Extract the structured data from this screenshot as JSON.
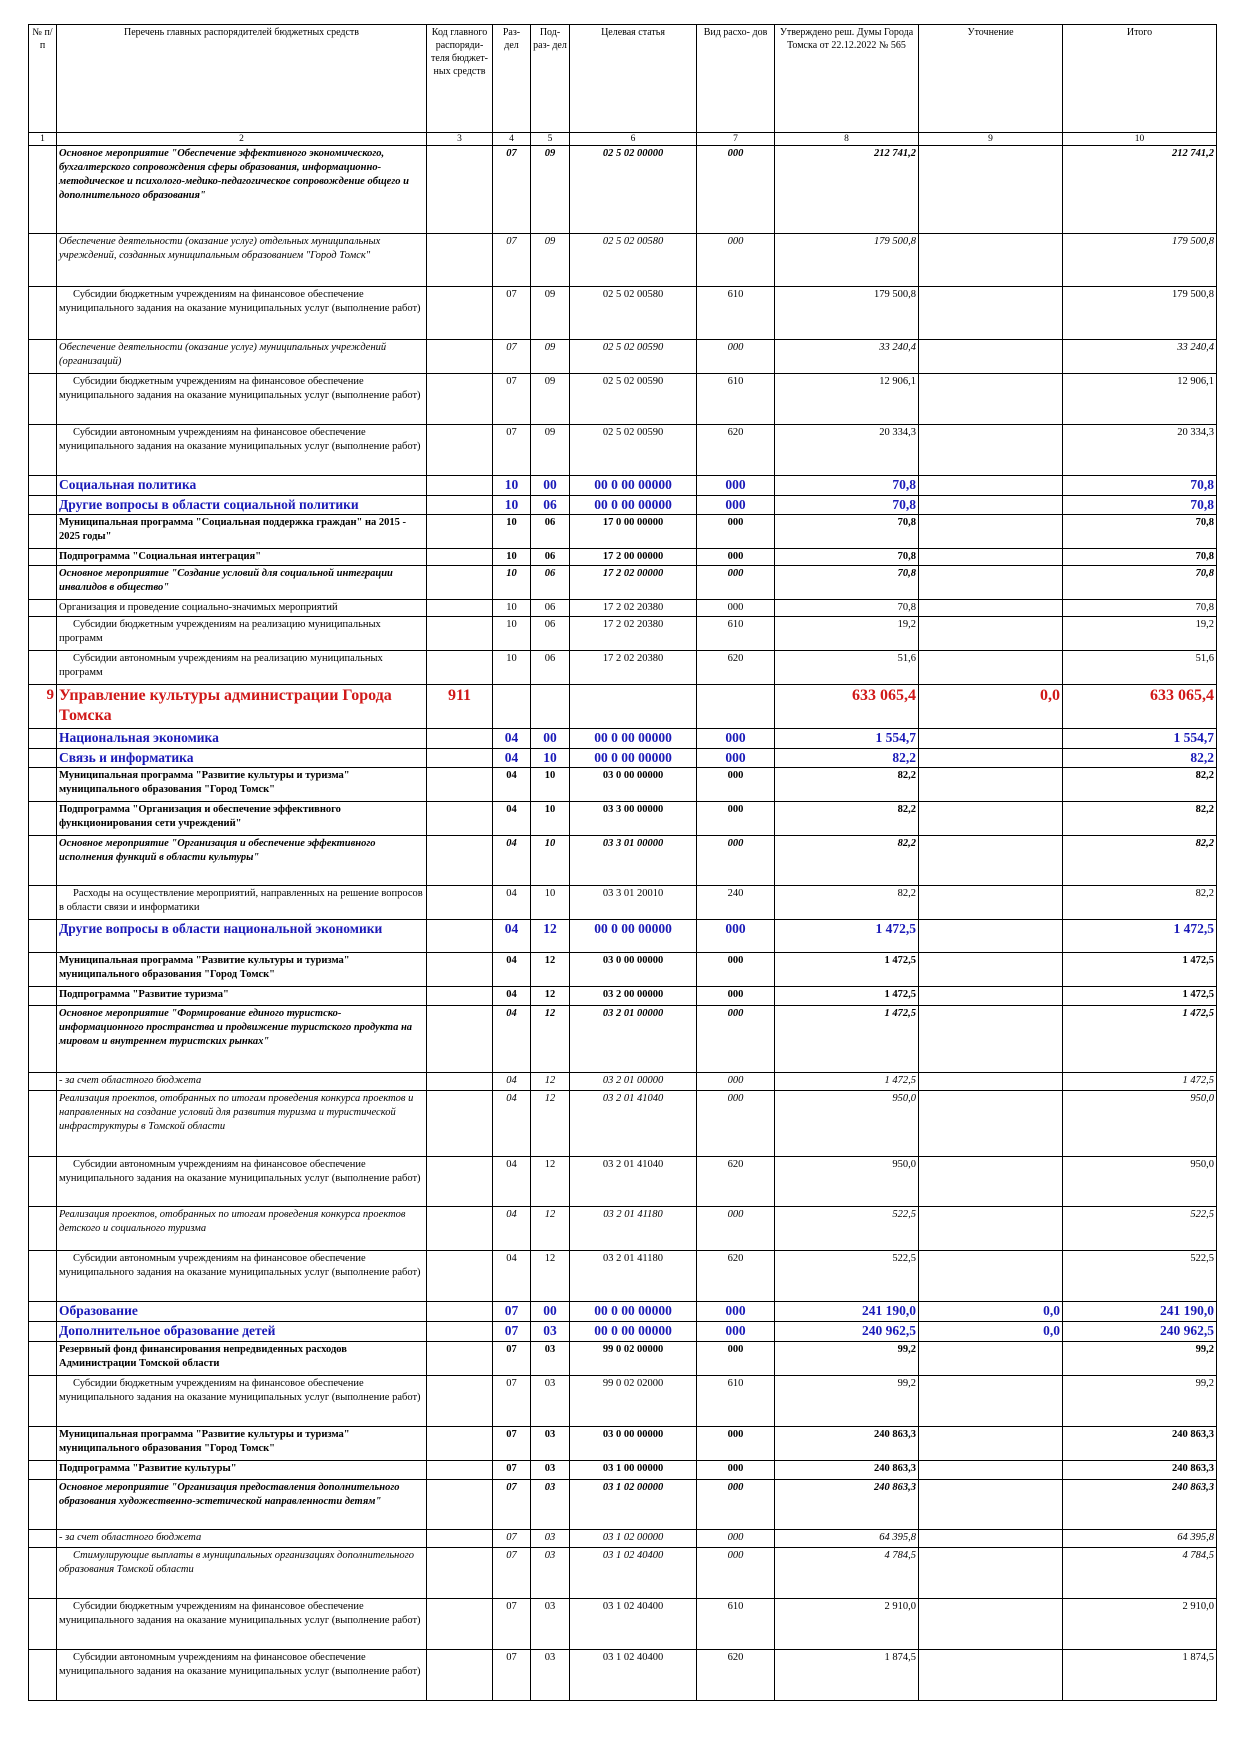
{
  "header": {
    "columns": [
      "№ п/п",
      "Перечень главных распорядителей бюджетных средств",
      "Код главного распоряди- теля бюджет- ных средств",
      "Раз- дел",
      "Под- раз- дел",
      "Целевая статья",
      "Вид расхо- дов",
      "Утверждено реш. Думы Города Томска от 22.12.2022 № 565",
      "Уточнение",
      "Итого"
    ],
    "numbers": [
      "1",
      "2",
      "3",
      "4",
      "5",
      "6",
      "7",
      "8",
      "9",
      "10"
    ]
  },
  "rows": [
    {
      "style": "bi",
      "h": 88,
      "no": "",
      "name": "Основное мероприятие \"Обеспечение эффективного экономического, бухгалтерского сопровождения сферы образования, информационно-методическое и психолого-медико-педагогическое сопровождение общего и дополнительного образования\"",
      "code": "",
      "razdel": "07",
      "podrazdel": "09",
      "csr": "02 5 02 00000",
      "vr": "000",
      "approved": "212 741,2",
      "adjust": "",
      "total": "212 741,2"
    },
    {
      "style": "i",
      "h": 53,
      "no": "",
      "name": "Обеспечение деятельности (оказание услуг) отдельных муниципальных учреждений, созданных муниципальным образованием \"Город Томск\"",
      "code": "",
      "razdel": "07",
      "podrazdel": "09",
      "csr": "02 5 02 00580",
      "vr": "000",
      "approved": "179 500,8",
      "adjust": "",
      "total": "179 500,8"
    },
    {
      "style": "ind",
      "h": 53,
      "no": "",
      "name": "Субсидии бюджетным учреждениям на финансовое обеспечение муниципального задания на оказание муниципальных услуг (выполнение работ)",
      "code": "",
      "razdel": "07",
      "podrazdel": "09",
      "csr": "02 5 02 00580",
      "vr": "610",
      "approved": "179 500,8",
      "adjust": "",
      "total": "179 500,8"
    },
    {
      "style": "i",
      "h": 34,
      "no": "",
      "name": "Обеспечение деятельности (оказание услуг) муниципальных учреждений (организаций)",
      "code": "",
      "razdel": "07",
      "podrazdel": "09",
      "csr": "02 5 02 00590",
      "vr": "000",
      "approved": "33 240,4",
      "adjust": "",
      "total": "33 240,4"
    },
    {
      "style": "ind",
      "h": 51,
      "no": "",
      "name": "Субсидии бюджетным учреждениям на финансовое обеспечение муниципального задания на оказание муниципальных услуг (выполнение работ)",
      "code": "",
      "razdel": "07",
      "podrazdel": "09",
      "csr": "02 5 02 00590",
      "vr": "610",
      "approved": "12 906,1",
      "adjust": "",
      "total": "12 906,1"
    },
    {
      "style": "ind",
      "h": 51,
      "no": "",
      "name": "Субсидии автономным учреждениям на финансовое обеспечение муниципального задания на оказание муниципальных услуг (выполнение работ)",
      "code": "",
      "razdel": "07",
      "podrazdel": "09",
      "csr": "02 5 02 00590",
      "vr": "620",
      "approved": "20 334,3",
      "adjust": "",
      "total": "20 334,3"
    },
    {
      "style": "blue",
      "h": 19,
      "no": "",
      "name": "Социальная политика",
      "code": "",
      "razdel": "10",
      "podrazdel": "00",
      "csr": "00 0 00 00000",
      "vr": "000",
      "approved": "70,8",
      "adjust": "",
      "total": "70,8"
    },
    {
      "style": "blue",
      "h": 19,
      "no": "",
      "name": "Другие вопросы в области социальной политики",
      "code": "",
      "razdel": "10",
      "podrazdel": "06",
      "csr": "00 0 00 00000",
      "vr": "000",
      "approved": "70,8",
      "adjust": "",
      "total": "70,8"
    },
    {
      "style": "b",
      "h": 34,
      "no": "",
      "name": "Муниципальная программа \"Социальная поддержка граждан\" на 2015 - 2025 годы\"",
      "code": "",
      "razdel": "10",
      "podrazdel": "06",
      "csr": "17 0 00 00000",
      "vr": "000",
      "approved": "70,8",
      "adjust": "",
      "total": "70,8"
    },
    {
      "style": "b",
      "h": 14,
      "no": "",
      "name": "Подпрограмма \"Социальная интеграция\"",
      "code": "",
      "razdel": "10",
      "podrazdel": "06",
      "csr": "17 2 00 00000",
      "vr": "000",
      "approved": "70,8",
      "adjust": "",
      "total": "70,8"
    },
    {
      "style": "bi",
      "h": 34,
      "no": "",
      "name": "Основное мероприятие \"Создание условий для социальной интеграции инвалидов в общество\"",
      "code": "",
      "razdel": "10",
      "podrazdel": "06",
      "csr": "17 2 02 00000",
      "vr": "000",
      "approved": "70,8",
      "adjust": "",
      "total": "70,8"
    },
    {
      "style": "",
      "h": 17,
      "no": "",
      "name": "Организация и проведение социально-значимых мероприятий",
      "code": "",
      "razdel": "10",
      "podrazdel": "06",
      "csr": "17 2 02 20380",
      "vr": "000",
      "approved": "70,8",
      "adjust": "",
      "total": "70,8"
    },
    {
      "style": "ind",
      "h": 34,
      "no": "",
      "name": "Субсидии бюджетным учреждениям на реализацию муниципальных программ",
      "code": "",
      "razdel": "10",
      "podrazdel": "06",
      "csr": "17 2 02 20380",
      "vr": "610",
      "approved": "19,2",
      "adjust": "",
      "total": "19,2"
    },
    {
      "style": "ind",
      "h": 34,
      "no": "",
      "name": "Субсидии автономным учреждениям на реализацию муниципальных программ",
      "code": "",
      "razdel": "10",
      "podrazdel": "06",
      "csr": "17 2 02 20380",
      "vr": "620",
      "approved": "51,6",
      "adjust": "",
      "total": "51,6"
    },
    {
      "style": "red",
      "h": 44,
      "no": "9",
      "name": "Управление культуры администрации Города Томска",
      "code": "911",
      "razdel": "",
      "podrazdel": "",
      "csr": "",
      "vr": "",
      "approved": "633 065,4",
      "adjust": "0,0",
      "total": "633 065,4"
    },
    {
      "style": "blue",
      "h": 20,
      "no": "",
      "name": "Национальная экономика",
      "code": "",
      "razdel": "04",
      "podrazdel": "00",
      "csr": "00 0 00 00000",
      "vr": "000",
      "approved": "1 554,7",
      "adjust": "",
      "total": "1 554,7"
    },
    {
      "style": "blue",
      "h": 19,
      "no": "",
      "name": "Связь и информатика",
      "code": "",
      "razdel": "04",
      "podrazdel": "10",
      "csr": "00 0 00 00000",
      "vr": "000",
      "approved": "82,2",
      "adjust": "",
      "total": "82,2"
    },
    {
      "style": "b",
      "h": 34,
      "no": "",
      "name": "Муниципальная программа \"Развитие культуры и туризма\" муниципального образования \"Город Томск\"",
      "code": "",
      "razdel": "04",
      "podrazdel": "10",
      "csr": "03 0 00 00000",
      "vr": "000",
      "approved": "82,2",
      "adjust": "",
      "total": "82,2"
    },
    {
      "style": "b",
      "h": 34,
      "no": "",
      "name": "Подпрограмма \"Организация и обеспечение эффективного функционирования сети учреждений\"",
      "code": "",
      "razdel": "04",
      "podrazdel": "10",
      "csr": "03 3 00 00000",
      "vr": "000",
      "approved": "82,2",
      "adjust": "",
      "total": "82,2"
    },
    {
      "style": "bi",
      "h": 50,
      "no": "",
      "name": "Основное мероприятие \"Организация и обеспечение эффективного исполнения функций в области культуры\"",
      "code": "",
      "razdel": "04",
      "podrazdel": "10",
      "csr": "03 3 01 00000",
      "vr": "000",
      "approved": "82,2",
      "adjust": "",
      "total": "82,2"
    },
    {
      "style": "ind",
      "h": 34,
      "no": "",
      "name": "Расходы на осуществление мероприятий, направленных на решение вопросов в области связи и информатики",
      "code": "",
      "razdel": "04",
      "podrazdel": "10",
      "csr": "03 3 01 20010",
      "vr": "240",
      "approved": "82,2",
      "adjust": "",
      "total": "82,2"
    },
    {
      "style": "blue",
      "h": 33,
      "no": "",
      "name": "Другие вопросы в области национальной экономики",
      "code": "",
      "razdel": "04",
      "podrazdel": "12",
      "csr": "00 0 00 00000",
      "vr": "000",
      "approved": "1 472,5",
      "adjust": "",
      "total": "1 472,5"
    },
    {
      "style": "b",
      "h": 34,
      "no": "",
      "name": "Муниципальная программа \"Развитие культуры и туризма\" муниципального образования \"Город Томск\"",
      "code": "",
      "razdel": "04",
      "podrazdel": "12",
      "csr": "03 0 00 00000",
      "vr": "000",
      "approved": "1 472,5",
      "adjust": "",
      "total": "1 472,5"
    },
    {
      "style": "b",
      "h": 19,
      "no": "",
      "name": "Подпрограмма \"Развитие туризма\"",
      "code": "",
      "razdel": "04",
      "podrazdel": "12",
      "csr": "03 2 00 00000",
      "vr": "000",
      "approved": "1 472,5",
      "adjust": "",
      "total": "1 472,5"
    },
    {
      "style": "bi",
      "h": 67,
      "no": "",
      "name": "Основное мероприятие \"Формирование единого туристско-информационного пространства и продвижение туристского продукта на мировом и внутреннем туристских рынках\"",
      "code": "",
      "razdel": "04",
      "podrazdel": "12",
      "csr": "03 2 01 00000",
      "vr": "000",
      "approved": "1 472,5",
      "adjust": "",
      "total": "1 472,5"
    },
    {
      "style": "i",
      "h": 18,
      "no": "",
      "name": "- за счет областного бюджета",
      "code": "",
      "razdel": "04",
      "podrazdel": "12",
      "csr": "03 2 01 00000",
      "vr": "000",
      "approved": "1 472,5",
      "adjust": "",
      "total": "1 472,5"
    },
    {
      "style": "i",
      "h": 66,
      "no": "",
      "name": "Реализация проектов, отобранных по итогам проведения конкурса проектов и направленных на создание условий для развития туризма и туристической инфраструктуры в Томской области",
      "code": "",
      "razdel": "04",
      "podrazdel": "12",
      "csr": "03 2 01 41040",
      "vr": "000",
      "approved": "950,0",
      "adjust": "",
      "total": "950,0"
    },
    {
      "style": "ind",
      "h": 50,
      "no": "",
      "name": "Субсидии автономным учреждениям на финансовое обеспечение муниципального задания на оказание муниципальных услуг (выполнение работ)",
      "code": "",
      "razdel": "04",
      "podrazdel": "12",
      "csr": "03 2 01 41040",
      "vr": "620",
      "approved": "950,0",
      "adjust": "",
      "total": "950,0"
    },
    {
      "style": "i",
      "h": 44,
      "no": "",
      "name": "Реализация проектов, отобранных по итогам проведения конкурса проектов детского и социального туризма",
      "code": "",
      "razdel": "04",
      "podrazdel": "12",
      "csr": "03 2 01 41180",
      "vr": "000",
      "approved": "522,5",
      "adjust": "",
      "total": "522,5"
    },
    {
      "style": "ind",
      "h": 51,
      "no": "",
      "name": "Субсидии автономным учреждениям на финансовое обеспечение муниципального задания на оказание муниципальных услуг (выполнение работ)",
      "code": "",
      "razdel": "04",
      "podrazdel": "12",
      "csr": "03 2 01 41180",
      "vr": "620",
      "approved": "522,5",
      "adjust": "",
      "total": "522,5"
    },
    {
      "style": "blue",
      "h": 20,
      "no": "",
      "name": "Образование",
      "code": "",
      "razdel": "07",
      "podrazdel": "00",
      "csr": "00 0 00 00000",
      "vr": "000",
      "approved": "241 190,0",
      "adjust": "0,0",
      "total": "241 190,0"
    },
    {
      "style": "blue",
      "h": 19,
      "no": "",
      "name": "Дополнительное образование детей",
      "code": "",
      "razdel": "07",
      "podrazdel": "03",
      "csr": "00 0 00 00000",
      "vr": "000",
      "approved": "240 962,5",
      "adjust": "0,0",
      "total": "240 962,5"
    },
    {
      "style": "b",
      "h": 34,
      "no": "",
      "name": "Резервный фонд финансирования непредвиденных расходов Администрации Томской области",
      "code": "",
      "razdel": "07",
      "podrazdel": "03",
      "csr": "99 0 02 00000",
      "vr": "000",
      "approved": "99,2",
      "adjust": "",
      "total": "99,2"
    },
    {
      "style": "ind",
      "h": 51,
      "no": "",
      "name": "Субсидии бюджетным учреждениям на финансовое обеспечение муниципального задания на оказание муниципальных услуг (выполнение работ)",
      "code": "",
      "razdel": "07",
      "podrazdel": "03",
      "csr": "99 0 02 02000",
      "vr": "610",
      "approved": "99,2",
      "adjust": "",
      "total": "99,2"
    },
    {
      "style": "b",
      "h": 34,
      "no": "",
      "name": "Муниципальная программа \"Развитие культуры и туризма\" муниципального образования \"Город Томск\"",
      "code": "",
      "razdel": "07",
      "podrazdel": "03",
      "csr": "03 0 00 00000",
      "vr": "000",
      "approved": "240 863,3",
      "adjust": "",
      "total": "240 863,3"
    },
    {
      "style": "b",
      "h": 19,
      "no": "",
      "name": "Подпрограмма \"Развитие культуры\"",
      "code": "",
      "razdel": "07",
      "podrazdel": "03",
      "csr": "03 1 00 00000",
      "vr": "000",
      "approved": "240 863,3",
      "adjust": "",
      "total": "240 863,3"
    },
    {
      "style": "bi",
      "h": 50,
      "no": "",
      "name": "Основное мероприятие \"Организация предоставления дополнительного образования художественно-эстетической направленности детям\"",
      "code": "",
      "razdel": "07",
      "podrazdel": "03",
      "csr": "03 1 02 00000",
      "vr": "000",
      "approved": "240 863,3",
      "adjust": "",
      "total": "240 863,3"
    },
    {
      "style": "i",
      "h": 18,
      "no": "",
      "name": "- за счет областного бюджета",
      "code": "",
      "razdel": "07",
      "podrazdel": "03",
      "csr": "03 1 02 00000",
      "vr": "000",
      "approved": "64 395,8",
      "adjust": "",
      "total": "64 395,8"
    },
    {
      "style": "i",
      "ind": true,
      "h": 51,
      "no": "",
      "name": "Стимулирующие выплаты в муниципальных организациях дополнительного образования Томской области",
      "code": "",
      "razdel": "07",
      "podrazdel": "03",
      "csr": "03 1 02 40400",
      "vr": "000",
      "approved": "4 784,5",
      "adjust": "",
      "total": "4 784,5"
    },
    {
      "style": "ind",
      "h": 51,
      "no": "",
      "name": "Субсидии бюджетным учреждениям на финансовое обеспечение муниципального задания на оказание муниципальных услуг (выполнение работ)",
      "code": "",
      "razdel": "07",
      "podrazdel": "03",
      "csr": "03 1 02 40400",
      "vr": "610",
      "approved": "2 910,0",
      "adjust": "",
      "total": "2 910,0"
    },
    {
      "style": "ind",
      "h": 51,
      "no": "",
      "name": "Субсидии автономным учреждениям на финансовое обеспечение муниципального задания на оказание муниципальных услуг (выполнение работ)",
      "code": "",
      "razdel": "07",
      "podrazdel": "03",
      "csr": "03 1 02 40400",
      "vr": "620",
      "approved": "1 874,5",
      "adjust": "",
      "total": "1 874,5"
    }
  ]
}
